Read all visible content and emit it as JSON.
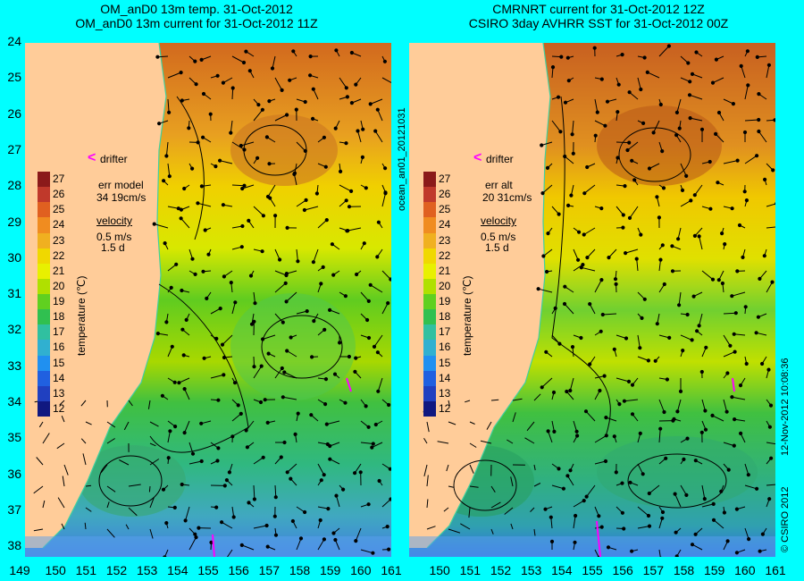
{
  "left_panel": {
    "title_line1": "OM_anD0 13m temp. 31-Oct-2012",
    "title_line2": "OM_anD0 13m current for 31-Oct-2012 11Z",
    "err_line1": "err model",
    "err_line2": "34 19cm/s"
  },
  "right_panel": {
    "title_line1": "CMRNRT current for 31-Oct-2012 12Z",
    "title_line2": "CSIRO 3day AVHRR SST for 31-Oct-2012 00Z",
    "err_line1": "err alt",
    "err_line2": "20 31cm/s"
  },
  "legend": {
    "drifter": "drifter",
    "velocity": "velocity",
    "vel_line1": "0.5 m/s",
    "vel_line2": "1.5 d",
    "colorbar_label": "temperature (℃)",
    "colorbar_ticks": [
      "27",
      "26",
      "25",
      "24",
      "23",
      "22",
      "21",
      "20",
      "19",
      "18",
      "17",
      "16",
      "15",
      "14",
      "13",
      "12"
    ]
  },
  "axes": {
    "lat_labels": [
      "24",
      "25",
      "26",
      "27",
      "28",
      "29",
      "30",
      "31",
      "32",
      "33",
      "34",
      "35",
      "36",
      "37",
      "38"
    ],
    "lon_labels": [
      "149",
      "150",
      "151",
      "152",
      "153",
      "154",
      "155",
      "156",
      "157",
      "158",
      "159",
      "160",
      "161"
    ]
  },
  "side_text": {
    "run_id": "ocean_an01_20121031",
    "copyright": "© CSIRO 2012",
    "timestamp": "12-Nov-2012 10:08:36"
  },
  "colors": {
    "land": "#ffcc99",
    "frame_bg": "#00ffff",
    "drifter": "#ff00ff"
  }
}
